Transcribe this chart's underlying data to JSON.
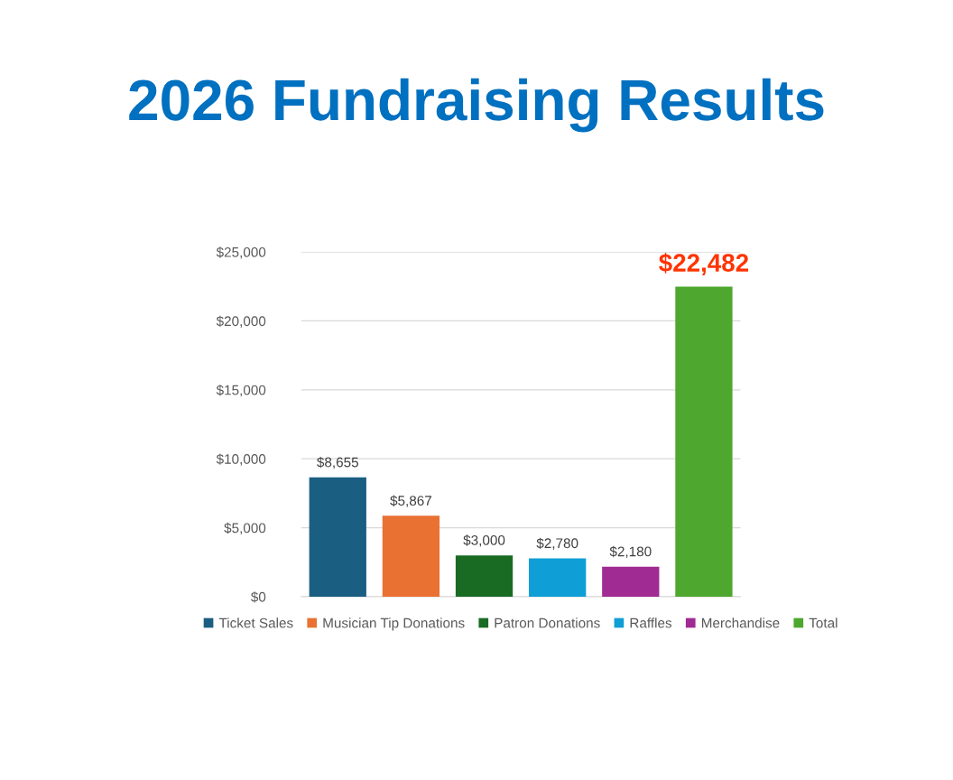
{
  "chart_data": {
    "type": "bar",
    "title": "2026 Fundraising Results",
    "categories": [
      null,
      null,
      null,
      null,
      null,
      null
    ],
    "series": [
      {
        "name": "Ticket Sales",
        "color": "#1a5f82",
        "values": [
          8655,
          null,
          null,
          null,
          null,
          null
        ],
        "value_labels": [
          "$8,655",
          null,
          null,
          null,
          null,
          null
        ]
      },
      {
        "name": "Musician Tip Donations",
        "color": "#e97132",
        "values": [
          null,
          5867,
          null,
          null,
          null,
          null
        ],
        "value_labels": [
          null,
          "$5,867",
          null,
          null,
          null,
          null
        ]
      },
      {
        "name": "Patron Donations",
        "color": "#196b24",
        "values": [
          null,
          null,
          3000,
          null,
          null,
          null
        ],
        "value_labels": [
          null,
          null,
          "$3,000",
          null,
          null,
          null
        ]
      },
      {
        "name": "Raffles",
        "color": "#0f9ed5",
        "values": [
          null,
          null,
          null,
          2780,
          null,
          null
        ],
        "value_labels": [
          null,
          null,
          null,
          "$2,780",
          null,
          null
        ]
      },
      {
        "name": "Merchandise",
        "color": "#a02b93",
        "values": [
          null,
          null,
          null,
          null,
          2180,
          null
        ],
        "value_labels": [
          null,
          null,
          null,
          null,
          "$2,180",
          null
        ]
      },
      {
        "name": "Total",
        "color": "#4ea72e",
        "values": [
          null,
          null,
          null,
          null,
          null,
          22482
        ],
        "value_labels": [
          null,
          null,
          null,
          null,
          null,
          "$22,482"
        ]
      }
    ],
    "ylim": [
      0,
      25000
    ],
    "yticks": [
      {
        "value": 0,
        "label": "$0"
      },
      {
        "value": 5000,
        "label": "$5,000"
      },
      {
        "value": 10000,
        "label": "$10,000"
      },
      {
        "value": 15000,
        "label": "$15,000"
      },
      {
        "value": 20000,
        "label": "$20,000"
      },
      {
        "value": 25000,
        "label": "$25,000"
      }
    ],
    "grid": "y",
    "legend": "bottom"
  }
}
